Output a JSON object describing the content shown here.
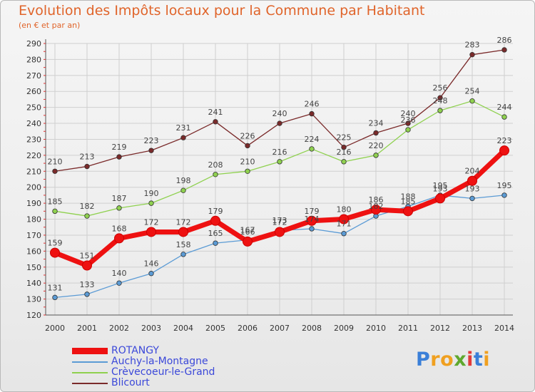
{
  "title": "Evolution des Impôts locaux pour la Commune par Habitant",
  "subtitle": "(en € et par an)",
  "logo": {
    "letters": [
      "P",
      "r",
      "o",
      "x",
      "i",
      "t",
      "i"
    ],
    "colors": [
      "#3a7fd8",
      "#f0a020",
      "#f0a020",
      "#5fa82e",
      "#e23a3a",
      "#3a7fd8",
      "#f0a020"
    ]
  },
  "chart_data": {
    "type": "line",
    "x": [
      "2000",
      "2001",
      "2002",
      "2003",
      "2004",
      "2005",
      "2006",
      "2007",
      "2008",
      "2009",
      "2010",
      "2011",
      "2012",
      "2013",
      "2014"
    ],
    "ylim": [
      120,
      290
    ],
    "yticks": [
      120,
      130,
      140,
      150,
      160,
      170,
      180,
      190,
      200,
      210,
      220,
      230,
      240,
      250,
      260,
      270,
      280,
      290
    ],
    "grid": true,
    "legend_position": "bottom-left",
    "series": [
      {
        "name": "ROTANGY",
        "color": "#ee1111",
        "values": [
          159,
          151,
          168,
          172,
          172,
          179,
          166,
          172,
          179,
          180,
          186,
          185,
          193,
          204,
          223
        ],
        "labels": [
          "159",
          "151",
          "168",
          "172",
          "172",
          "179",
          "166",
          "172",
          "179",
          "180",
          "186",
          "185",
          "193",
          "204",
          "223"
        ]
      },
      {
        "name": "Auchy-la-Montagne",
        "color": "#5b9bd5",
        "values": [
          131,
          133,
          140,
          146,
          158,
          165,
          167,
          173,
          174,
          171,
          182,
          188,
          195,
          193,
          195
        ],
        "labels": [
          "131",
          "133",
          "140",
          "146",
          "158",
          "165",
          "167",
          "173",
          "174",
          "171",
          "182",
          "188",
          "195",
          "193",
          "195"
        ]
      },
      {
        "name": "Crèvecoeur-le-Grand",
        "color": "#8fd14f",
        "values": [
          185,
          182,
          187,
          190,
          198,
          208,
          210,
          216,
          224,
          216,
          220,
          236,
          248,
          254,
          244
        ],
        "labels": [
          "185",
          "182",
          "187",
          "190",
          "198",
          "208",
          "210",
          "216",
          "224",
          "216",
          "220",
          "236",
          "248",
          "254",
          "244"
        ]
      },
      {
        "name": "Blicourt",
        "color": "#7a2a2a",
        "values": [
          210,
          213,
          219,
          223,
          231,
          241,
          226,
          240,
          246,
          225,
          234,
          240,
          256,
          283,
          286
        ],
        "labels": [
          "210",
          "213",
          "219",
          "223",
          "231",
          "241",
          "226",
          "240",
          "246",
          "225",
          "234",
          "240",
          "256",
          "283",
          "286"
        ]
      }
    ]
  }
}
